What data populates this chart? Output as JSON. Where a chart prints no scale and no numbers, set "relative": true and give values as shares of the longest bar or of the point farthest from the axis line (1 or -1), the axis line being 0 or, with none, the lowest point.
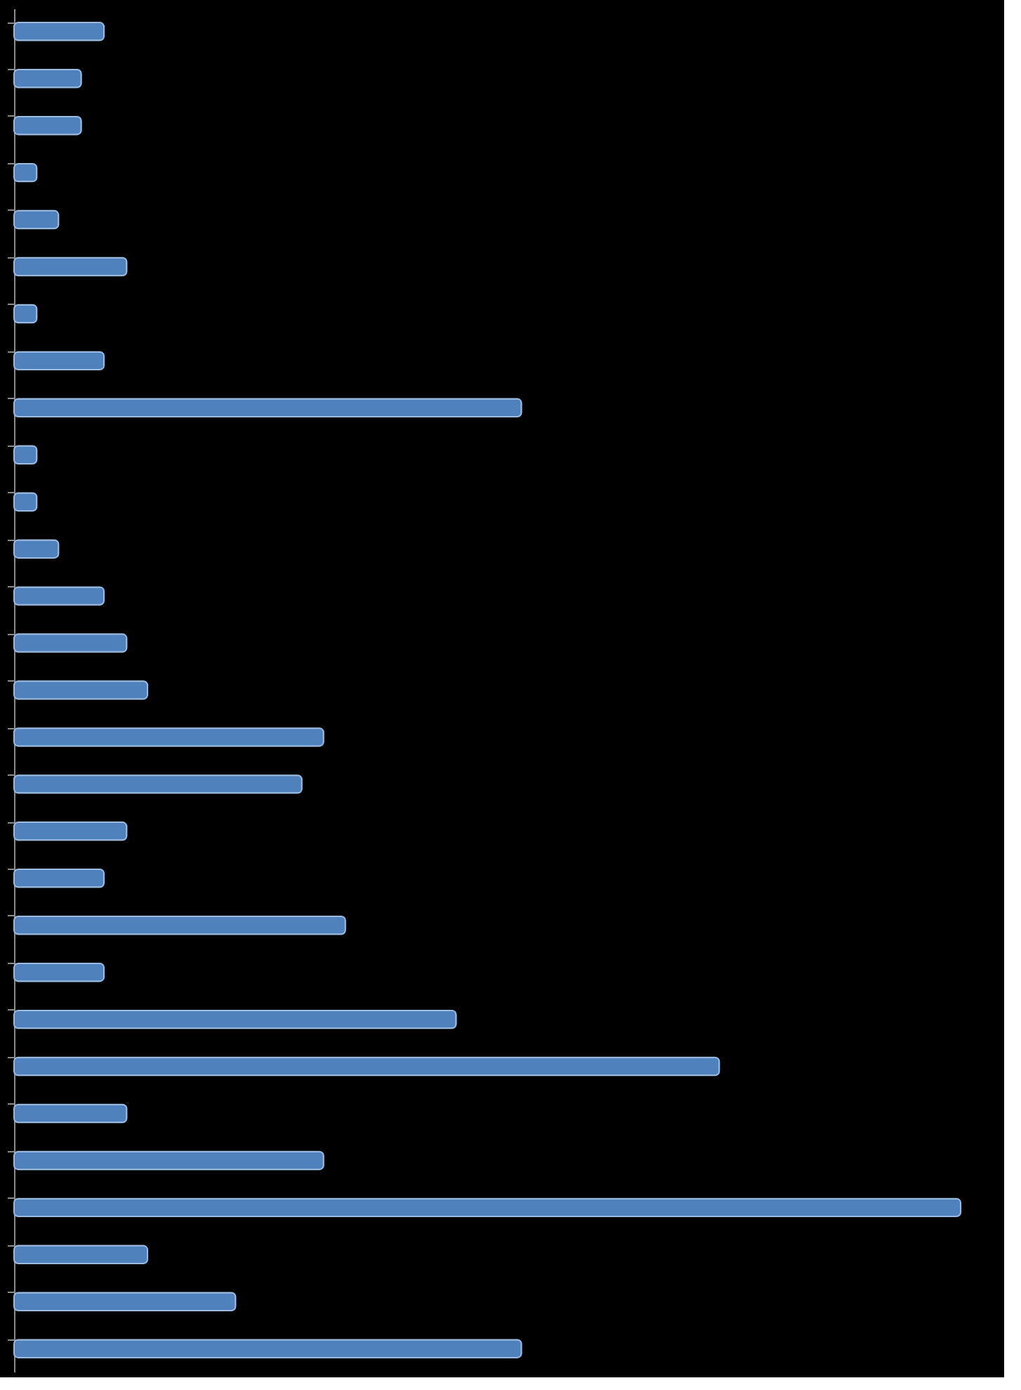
{
  "chart_data": {
    "type": "bar",
    "orientation": "horizontal",
    "relative": true,
    "color": "#4f81bd",
    "tick_labels": false,
    "categories": [
      null,
      null,
      null,
      null,
      null,
      null,
      null,
      null,
      null,
      null,
      null,
      null,
      null,
      null,
      null,
      null,
      null,
      null,
      null,
      null,
      null,
      null,
      null,
      null,
      null,
      null,
      null,
      null,
      null
    ],
    "values": [
      0.095,
      0.071,
      0.071,
      0.024,
      0.047,
      0.119,
      0.024,
      0.095,
      0.536,
      0.024,
      0.024,
      0.047,
      0.095,
      0.119,
      0.141,
      0.327,
      0.304,
      0.119,
      0.095,
      0.35,
      0.095,
      0.467,
      0.745,
      0.119,
      0.327,
      1,
      0.141,
      0.234,
      0.536
    ]
  }
}
